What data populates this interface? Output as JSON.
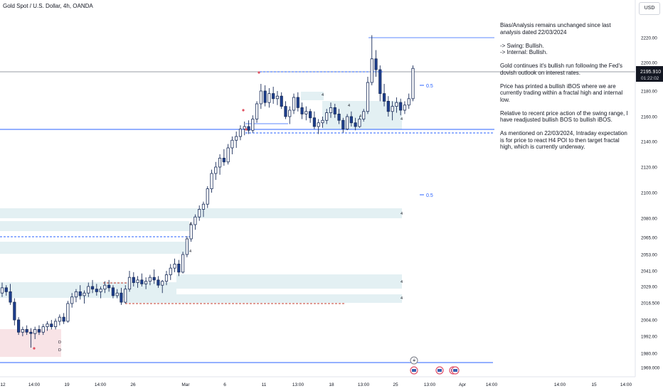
{
  "header": {
    "title": "Gold Spot / U.S. Dollar, 4h, OANDA",
    "currency": "USD"
  },
  "analysis": {
    "paragraphs": [
      "Bias/Analysis remains unchanged since last analysis dated 22/03/2024",
      "-> Swing:  Bullish.\n-> Internal:  Bullish.",
      "Gold continues it's bullish run following the Fed's dovish outlook on interest rates.",
      "Price has printed a bullish iBOS where we are currently trading within a fractal high and internal low.",
      "Relative to recent price action of the swing range, I have readjusted bullish BOS to bullish iBOS.",
      "As mentioned on 22/03/2024, Intraday expectation is for price to react H4 POI to then target fractal high, which is currently underway."
    ]
  },
  "colors": {
    "bull": "#ffffff",
    "bear": "#1e3f8f",
    "wick": "#1a2d5a",
    "zone": "#e3f0f3",
    "zone_red": "#f8e3e6",
    "blue_line": "#2962ff",
    "red_line": "#c0392b",
    "axis_text": "#131722",
    "price_tag": "#131722"
  },
  "chart_data": {
    "type": "candlestick",
    "symbol": "Gold Spot / U.S. Dollar",
    "timeframe": "4h",
    "y_ticks": [
      2220.0,
      2200.0,
      2180.0,
      2160.0,
      2140.0,
      2120.0,
      2100.0,
      2080.0,
      2065.0,
      2053.0,
      2041.0,
      2029.0,
      2016.5,
      2004.0,
      1992.0,
      1980.0,
      1969.0
    ],
    "y_tick_labels": [
      "2220.00",
      "2200.00",
      "2180.00",
      "2160.00",
      "2140.00",
      "2120.00",
      "2100.00",
      "2080.00",
      "2065.00",
      "2053.00",
      "2041.00",
      "2029.00",
      "2016.500",
      "2004.00",
      "1992.00",
      "1980.00",
      "1969.000"
    ],
    "x_tick_labels": [
      "12",
      "14:00",
      "19",
      "14:00",
      "26",
      "Mar",
      "6",
      "11",
      "13:00",
      "18",
      "13:00",
      "25",
      "13:00",
      "Apr",
      "14:00",
      "14:00",
      "15",
      "14:00"
    ],
    "current_price": 2195.91,
    "current_price_label": "2195.910",
    "countdown": "01:22:02",
    "annotations": [
      {
        "text": "0.5",
        "price": 2183.5
      },
      {
        "text": "0.5",
        "price": 2099.0
      }
    ],
    "markers": [
      "4",
      "4",
      "4",
      "4",
      "4",
      "4",
      "4",
      "4",
      "4",
      "D",
      "D"
    ],
    "ohlc": [
      [
        2024.0,
        2032.0,
        2021.0,
        2028.0
      ],
      [
        2028.0,
        2030.0,
        2022.0,
        2025.0
      ],
      [
        2025.0,
        2031.0,
        2015.0,
        2017.0
      ],
      [
        2017.0,
        2020.0,
        2000.0,
        2004.0
      ],
      [
        2004.0,
        2006.0,
        1993.0,
        1995.0
      ],
      [
        1995.0,
        1999.0,
        1992.0,
        1997.0
      ],
      [
        1997.0,
        2000.0,
        1993.0,
        1995.0
      ],
      [
        1995.0,
        1998.0,
        1984.0,
        1994.0
      ],
      [
        1994.0,
        1999.0,
        1990.0,
        1997.0
      ],
      [
        1997.0,
        2000.0,
        1993.0,
        1995.0
      ],
      [
        1995.0,
        2001.0,
        1993.0,
        1999.0
      ],
      [
        1999.0,
        2003.0,
        1996.0,
        2001.0
      ],
      [
        2001.0,
        2004.0,
        1997.0,
        1999.0
      ],
      [
        1999.0,
        2005.0,
        1997.0,
        2003.0
      ],
      [
        2003.0,
        2008.0,
        2000.0,
        2006.0
      ],
      [
        2006.0,
        2009.0,
        2001.0,
        2003.0
      ],
      [
        2003.0,
        2018.0,
        2002.0,
        2016.0
      ],
      [
        2016.0,
        2024.0,
        2013.0,
        2021.0
      ],
      [
        2021.0,
        2027.0,
        2017.0,
        2025.0
      ],
      [
        2025.0,
        2030.0,
        2019.0,
        2022.0
      ],
      [
        2022.0,
        2026.0,
        2016.0,
        2024.0
      ],
      [
        2024.0,
        2032.0,
        2021.0,
        2029.0
      ],
      [
        2029.0,
        2034.0,
        2024.0,
        2027.0
      ],
      [
        2027.0,
        2031.0,
        2022.0,
        2025.0
      ],
      [
        2025.0,
        2029.0,
        2020.0,
        2027.0
      ],
      [
        2027.0,
        2033.0,
        2024.0,
        2030.0
      ],
      [
        2030.0,
        2034.0,
        2025.0,
        2028.0
      ],
      [
        2028.0,
        2030.0,
        2020.0,
        2022.0
      ],
      [
        2022.0,
        2027.0,
        2020.0,
        2024.0
      ],
      [
        2024.0,
        2028.0,
        2015.0,
        2017.0
      ],
      [
        2017.0,
        2030.0,
        2016.0,
        2027.0
      ],
      [
        2027.0,
        2041.0,
        2025.0,
        2036.0
      ],
      [
        2036.0,
        2040.0,
        2029.0,
        2032.0
      ],
      [
        2032.0,
        2037.0,
        2028.0,
        2034.0
      ],
      [
        2034.0,
        2039.0,
        2029.0,
        2031.0
      ],
      [
        2031.0,
        2036.0,
        2027.0,
        2033.0
      ],
      [
        2033.0,
        2038.0,
        2030.0,
        2036.0
      ],
      [
        2036.0,
        2042.0,
        2031.0,
        2034.0
      ],
      [
        2034.0,
        2037.0,
        2028.0,
        2030.0
      ],
      [
        2030.0,
        2034.0,
        2024.0,
        2033.0
      ],
      [
        2033.0,
        2041.0,
        2030.0,
        2038.0
      ],
      [
        2038.0,
        2046.0,
        2034.0,
        2043.0
      ],
      [
        2043.0,
        2050.0,
        2040.0,
        2046.0
      ],
      [
        2046.0,
        2049.0,
        2037.0,
        2040.0
      ],
      [
        2040.0,
        2055.0,
        2039.0,
        2053.0
      ],
      [
        2053.0,
        2066.0,
        2051.0,
        2064.0
      ],
      [
        2064.0,
        2077.0,
        2062.0,
        2075.0
      ],
      [
        2075.0,
        2083.0,
        2071.0,
        2081.0
      ],
      [
        2081.0,
        2090.0,
        2078.0,
        2087.0
      ],
      [
        2087.0,
        2093.0,
        2081.0,
        2091.0
      ],
      [
        2091.0,
        2105.0,
        2088.0,
        2103.0
      ],
      [
        2103.0,
        2118.0,
        2100.0,
        2115.0
      ],
      [
        2115.0,
        2124.0,
        2110.0,
        2120.0
      ],
      [
        2120.0,
        2130.0,
        2114.0,
        2127.0
      ],
      [
        2127.0,
        2134.0,
        2121.0,
        2124.0
      ],
      [
        2124.0,
        2138.0,
        2122.0,
        2135.0
      ],
      [
        2135.0,
        2144.0,
        2130.0,
        2141.0
      ],
      [
        2141.0,
        2148.0,
        2135.0,
        2144.0
      ],
      [
        2144.0,
        2153.0,
        2141.0,
        2150.0
      ],
      [
        2150.0,
        2156.0,
        2145.0,
        2152.0
      ],
      [
        2152.0,
        2157.0,
        2146.0,
        2149.0
      ],
      [
        2149.0,
        2161.0,
        2147.0,
        2158.0
      ],
      [
        2158.0,
        2172.0,
        2155.0,
        2170.0
      ],
      [
        2170.0,
        2185.0,
        2166.0,
        2180.0
      ],
      [
        2180.0,
        2184.0,
        2168.0,
        2171.0
      ],
      [
        2171.0,
        2182.0,
        2167.0,
        2178.0
      ],
      [
        2178.0,
        2183.0,
        2170.0,
        2174.0
      ],
      [
        2174.0,
        2180.0,
        2169.0,
        2176.0
      ],
      [
        2176.0,
        2179.0,
        2166.0,
        2168.0
      ],
      [
        2168.0,
        2172.0,
        2158.0,
        2160.0
      ],
      [
        2160.0,
        2168.0,
        2154.0,
        2165.0
      ],
      [
        2165.0,
        2178.0,
        2162.0,
        2175.0
      ],
      [
        2175.0,
        2179.0,
        2164.0,
        2167.0
      ],
      [
        2167.0,
        2171.0,
        2158.0,
        2162.0
      ],
      [
        2162.0,
        2168.0,
        2157.0,
        2164.0
      ],
      [
        2164.0,
        2166.0,
        2155.0,
        2159.0
      ],
      [
        2159.0,
        2164.0,
        2150.0,
        2152.0
      ],
      [
        2152.0,
        2158.0,
        2146.0,
        2155.0
      ],
      [
        2155.0,
        2160.0,
        2151.0,
        2157.0
      ],
      [
        2157.0,
        2166.0,
        2154.0,
        2163.0
      ],
      [
        2163.0,
        2171.0,
        2159.0,
        2167.0
      ],
      [
        2167.0,
        2170.0,
        2159.0,
        2162.0
      ],
      [
        2162.0,
        2166.0,
        2154.0,
        2157.0
      ],
      [
        2157.0,
        2159.0,
        2147.0,
        2150.0
      ],
      [
        2150.0,
        2162.0,
        2149.0,
        2160.0
      ],
      [
        2160.0,
        2164.0,
        2152.0,
        2155.0
      ],
      [
        2155.0,
        2159.0,
        2149.0,
        2152.0
      ],
      [
        2152.0,
        2160.0,
        2151.0,
        2158.0
      ],
      [
        2158.0,
        2166.0,
        2156.0,
        2164.0
      ],
      [
        2164.0,
        2190.0,
        2162.0,
        2186.0
      ],
      [
        2186.0,
        2222.0,
        2184.0,
        2203.0
      ],
      [
        2203.0,
        2210.0,
        2190.0,
        2195.0
      ],
      [
        2195.0,
        2198.0,
        2172.0,
        2178.0
      ],
      [
        2178.0,
        2185.0,
        2168.0,
        2172.0
      ],
      [
        2172.0,
        2176.0,
        2160.0,
        2164.0
      ],
      [
        2164.0,
        2172.0,
        2157.0,
        2168.0
      ],
      [
        2168.0,
        2175.0,
        2163.0,
        2171.0
      ],
      [
        2171.0,
        2174.0,
        2161.0,
        2165.0
      ],
      [
        2165.0,
        2172.0,
        2162.0,
        2169.0
      ],
      [
        2169.0,
        2178.0,
        2166.0,
        2174.0
      ],
      [
        2174.0,
        2198.0,
        2172.0,
        2195.9
      ]
    ]
  }
}
